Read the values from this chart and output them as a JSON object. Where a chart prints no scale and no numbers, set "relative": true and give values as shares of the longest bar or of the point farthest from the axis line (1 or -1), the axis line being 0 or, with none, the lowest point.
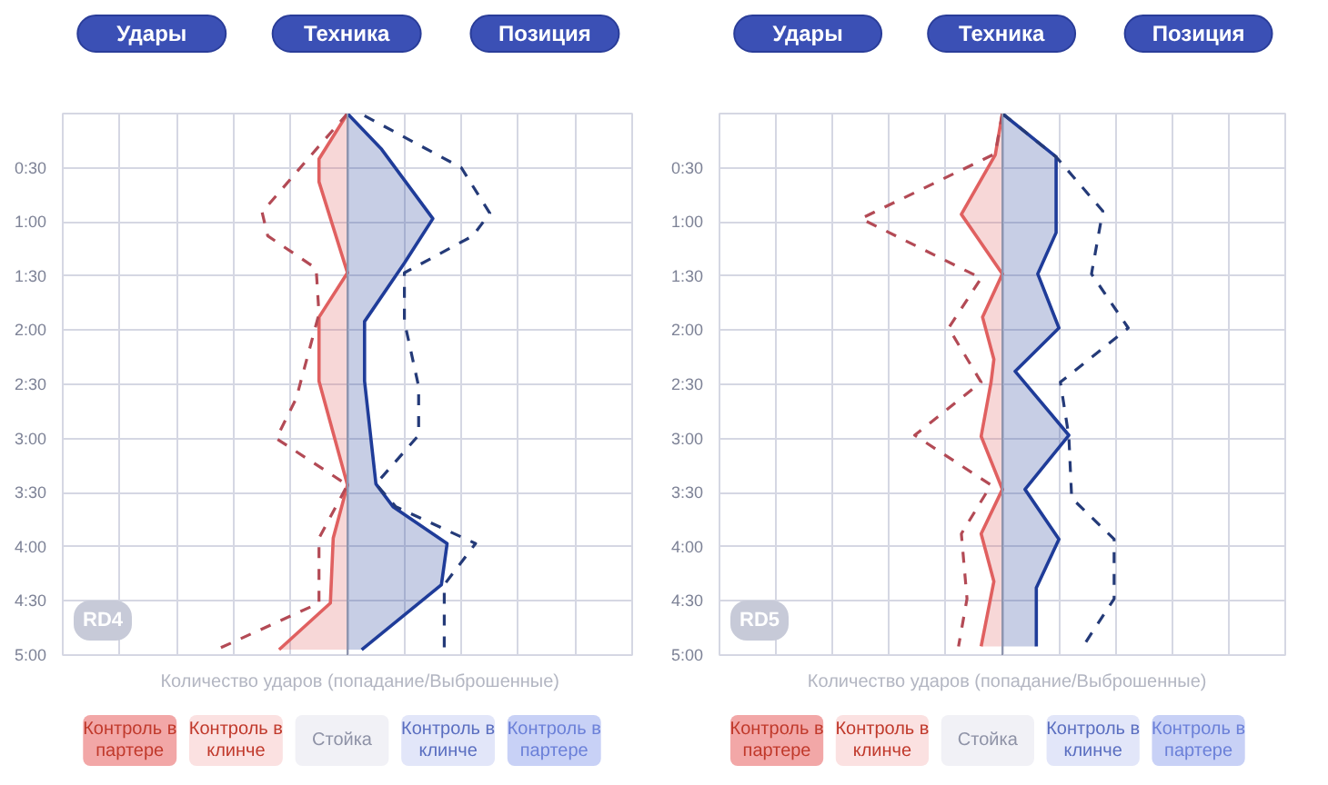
{
  "chart_data": [
    {
      "type": "line",
      "orientation": "horizontal",
      "relative": true,
      "title": "RD4",
      "xlabel": "Количество ударов (попадание/Выброшенные)",
      "grid": true,
      "ylim": [
        5,
        0
      ],
      "yticks": [
        {
          "value": 0,
          "label": null
        },
        {
          "value": 0.5,
          "label": "0:30"
        },
        {
          "value": 1,
          "label": "1:00"
        },
        {
          "value": 1.5,
          "label": "1:30"
        },
        {
          "value": 2,
          "label": "2:00"
        },
        {
          "value": 2.5,
          "label": "2:30"
        },
        {
          "value": 3,
          "label": "3:00"
        },
        {
          "value": 3.5,
          "label": "3:30"
        },
        {
          "value": 4,
          "label": "4:00"
        },
        {
          "value": 4.5,
          "label": "4:30"
        },
        {
          "value": 5,
          "label": "5:00"
        }
      ],
      "annotations": [
        "Удары",
        "Техника",
        "Позиция",
        "Контроль в партере",
        "Контроль в клинче",
        "Стойка",
        "Контроль в клинче",
        "Контроль в партере"
      ],
      "series": [
        {
          "type": "area",
          "color": "#e06060",
          "x": [
            0,
            0.42,
            0.63,
            1.47,
            1.88,
            2.47,
            3.43,
            3.92,
            4.52,
            4.95
          ],
          "values": [
            0,
            -0.2,
            -0.2,
            0,
            -0.2,
            -0.2,
            0,
            -0.1,
            -0.12,
            -0.48
          ]
        },
        {
          "line_style": "dashed",
          "color": "#b34a55",
          "x": [
            0,
            0.3,
            0.91,
            1.13,
            1.43,
            1.85,
            2.63,
            3.0,
            3.43,
            3.92,
            4.52,
            4.95
          ],
          "values": [
            0,
            -0.2,
            -0.6,
            -0.56,
            -0.22,
            -0.2,
            -0.36,
            -0.5,
            0,
            -0.2,
            -0.2,
            -0.92
          ]
        },
        {
          "type": "area",
          "color": "#1f3c99",
          "x": [
            0,
            0.33,
            0.97,
            1.38,
            1.92,
            2.47,
            3.42,
            3.63,
            3.97,
            4.35,
            4.95
          ],
          "values": [
            0,
            0.24,
            0.6,
            0.4,
            0.12,
            0.12,
            0.2,
            0.32,
            0.7,
            0.66,
            0.1
          ]
        },
        {
          "line_style": "dashed",
          "color": "#243a78",
          "x": [
            0.02,
            0.5,
            0.92,
            1.13,
            1.47,
            1.92,
            2.52,
            2.97,
            3.42,
            3.63,
            3.97,
            4.35,
            4.95
          ],
          "values": [
            0.12,
            0.8,
            1,
            0.88,
            0.4,
            0.4,
            0.5,
            0.5,
            0.2,
            0.34,
            0.9,
            0.68,
            0.68
          ]
        }
      ]
    },
    {
      "type": "line",
      "orientation": "horizontal",
      "relative": true,
      "title": "RD5",
      "xlabel": "Количество ударов (попадание/Выброшенные)",
      "grid": true,
      "ylim": [
        5,
        0
      ],
      "yticks": [
        {
          "value": 0,
          "label": null
        },
        {
          "value": 0.5,
          "label": "0:30"
        },
        {
          "value": 1,
          "label": "1:00"
        },
        {
          "value": 1.5,
          "label": "1:30"
        },
        {
          "value": 2,
          "label": "2:00"
        },
        {
          "value": 2.5,
          "label": "2:30"
        },
        {
          "value": 3,
          "label": "3:00"
        },
        {
          "value": 3.5,
          "label": "3:30"
        },
        {
          "value": 4,
          "label": "4:00"
        },
        {
          "value": 4.5,
          "label": "4:30"
        },
        {
          "value": 5,
          "label": "5:00"
        }
      ],
      "annotations": [
        "Удары",
        "Техника",
        "Позиция",
        "Контроль в партере",
        "Контроль в клинче",
        "Стойка",
        "Контроль в клинче",
        "Контроль в партере"
      ],
      "series": [
        {
          "type": "area",
          "color": "#e06060",
          "x": [
            0,
            0.38,
            0.93,
            1.48,
            1.88,
            2.27,
            2.48,
            2.98,
            3.47,
            3.88,
            4.32,
            4.92
          ],
          "values": [
            0,
            -0.05,
            -0.29,
            0,
            -0.14,
            -0.06,
            -0.08,
            -0.15,
            0,
            -0.15,
            -0.06,
            -0.15
          ]
        },
        {
          "line_style": "dashed",
          "color": "#b34a55",
          "x": [
            0,
            0.37,
            0.97,
            1.52,
            1.98,
            2.48,
            2.97,
            3.43,
            3.88,
            4.48,
            4.92
          ],
          "values": [
            0,
            -0.05,
            -1,
            -0.15,
            -0.38,
            -0.15,
            -0.62,
            -0.08,
            -0.29,
            -0.25,
            -0.31
          ]
        },
        {
          "type": "area",
          "color": "#1f3c99",
          "x": [
            0,
            0.4,
            1.1,
            1.48,
            1.98,
            2.38,
            2.97,
            3.47,
            3.93,
            4.38,
            4.92
          ],
          "values": [
            0,
            0.38,
            0.38,
            0.25,
            0.4,
            0.09,
            0.47,
            0.16,
            0.4,
            0.24,
            0.24
          ]
        },
        {
          "line_style": "dashed",
          "color": "#243a78",
          "x": [
            0,
            0.4,
            0.9,
            1.48,
            1.98,
            2.48,
            2.98,
            3.55,
            3.93,
            4.48,
            4.92
          ],
          "values": [
            0,
            0.38,
            0.71,
            0.63,
            0.89,
            0.41,
            0.47,
            0.49,
            0.79,
            0.79,
            0.57
          ]
        }
      ]
    }
  ]
}
